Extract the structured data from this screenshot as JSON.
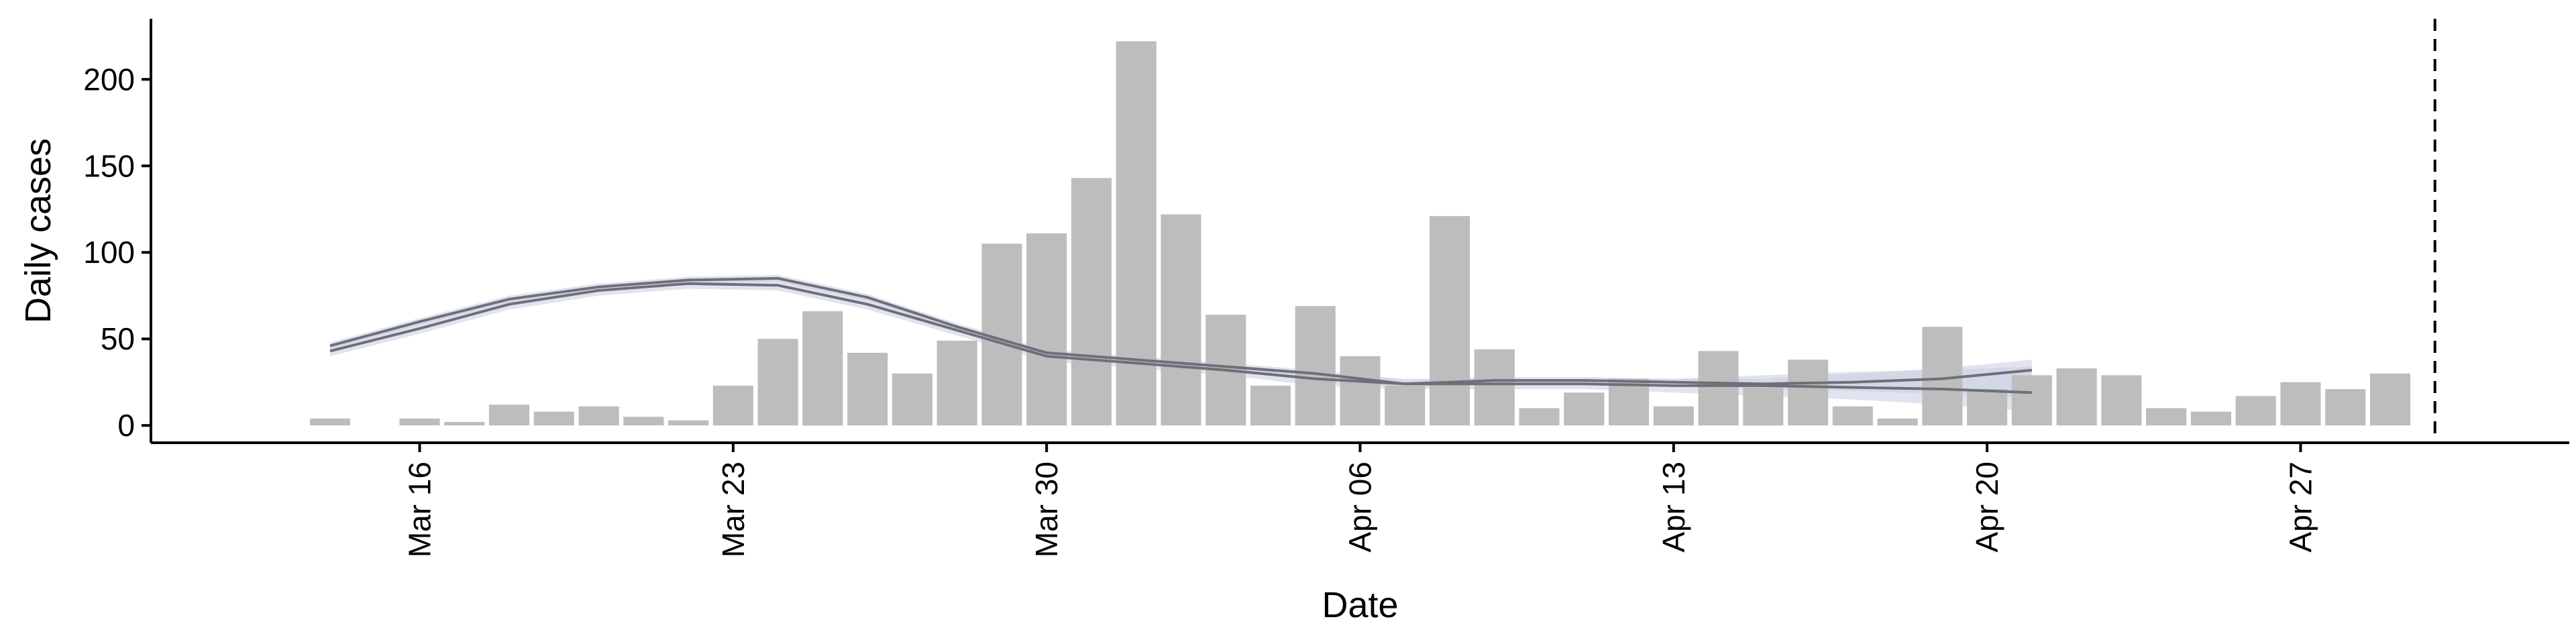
{
  "chart_data": {
    "type": "bar",
    "xlabel": "Date",
    "ylabel": "Daily cases",
    "x_range": [
      "2020-03-10",
      "2020-05-03"
    ],
    "ylim": [
      -10,
      235
    ],
    "grid": false,
    "legend": "none",
    "x_ticks": [
      {
        "date": "2020-03-16",
        "label": "Mar 16"
      },
      {
        "date": "2020-03-23",
        "label": "Mar 23"
      },
      {
        "date": "2020-03-30",
        "label": "Mar 30"
      },
      {
        "date": "2020-04-06",
        "label": "Apr 06"
      },
      {
        "date": "2020-04-13",
        "label": "Apr 13"
      },
      {
        "date": "2020-04-20",
        "label": "Apr 20"
      },
      {
        "date": "2020-04-27",
        "label": "Apr 27"
      }
    ],
    "y_ticks": [
      {
        "value": 0,
        "label": "0"
      },
      {
        "value": 50,
        "label": "50"
      },
      {
        "value": 100,
        "label": "100"
      },
      {
        "value": 150,
        "label": "150"
      },
      {
        "value": 200,
        "label": "200"
      }
    ],
    "bars": {
      "color": "#bdbdbd",
      "dates": [
        "2020-03-14",
        "2020-03-15",
        "2020-03-16",
        "2020-03-17",
        "2020-03-18",
        "2020-03-19",
        "2020-03-20",
        "2020-03-21",
        "2020-03-22",
        "2020-03-23",
        "2020-03-24",
        "2020-03-25",
        "2020-03-26",
        "2020-03-27",
        "2020-03-28",
        "2020-03-29",
        "2020-03-30",
        "2020-03-31",
        "2020-04-01",
        "2020-04-02",
        "2020-04-03",
        "2020-04-04",
        "2020-04-05",
        "2020-04-06",
        "2020-04-07",
        "2020-04-08",
        "2020-04-09",
        "2020-04-10",
        "2020-04-11",
        "2020-04-12",
        "2020-04-13",
        "2020-04-14",
        "2020-04-15",
        "2020-04-16",
        "2020-04-17",
        "2020-04-18",
        "2020-04-19",
        "2020-04-20",
        "2020-04-21",
        "2020-04-22",
        "2020-04-23",
        "2020-04-24",
        "2020-04-25",
        "2020-04-26",
        "2020-04-27",
        "2020-04-28",
        "2020-04-29",
        "2020-04-30",
        "2020-05-01"
      ],
      "values": [
        4,
        0,
        4,
        2,
        12,
        8,
        11,
        5,
        3,
        23,
        50,
        66,
        42,
        30,
        49,
        105,
        111,
        143,
        222,
        122,
        64,
        23,
        69,
        40,
        23,
        121,
        44,
        10,
        19,
        27,
        11,
        43,
        22,
        38,
        11,
        4,
        57,
        21,
        29,
        33,
        29,
        10,
        8,
        17,
        25,
        21,
        30,
        0,
        0
      ]
    },
    "trend_lines": {
      "color": "#6f6f7a",
      "band_color": "#c9cde0",
      "series": [
        {
          "dates": [
            "2020-03-14",
            "2020-03-16",
            "2020-03-18",
            "2020-03-20",
            "2020-03-22",
            "2020-03-24",
            "2020-03-26",
            "2020-03-28",
            "2020-03-30",
            "2020-04-01",
            "2020-04-03",
            "2020-04-05",
            "2020-04-07",
            "2020-04-09",
            "2020-04-11",
            "2020-04-13",
            "2020-04-15",
            "2020-04-17",
            "2020-04-19",
            "2020-04-21"
          ],
          "values": [
            43,
            56,
            70,
            78,
            82,
            81,
            70,
            55,
            40,
            36,
            32,
            27,
            24,
            24,
            24,
            23,
            23,
            22,
            21,
            19
          ],
          "band_low": [
            40,
            53,
            67,
            75,
            79,
            78,
            67,
            52,
            37,
            33,
            29,
            23,
            21,
            21,
            21,
            19,
            17,
            15,
            12,
            8
          ],
          "band_high": [
            46,
            59,
            73,
            81,
            85,
            84,
            73,
            58,
            43,
            39,
            35,
            31,
            27,
            27,
            27,
            27,
            29,
            31,
            32,
            34
          ]
        },
        {
          "dates": [
            "2020-03-14",
            "2020-03-16",
            "2020-03-18",
            "2020-03-20",
            "2020-03-22",
            "2020-03-24",
            "2020-03-26",
            "2020-03-28",
            "2020-03-30",
            "2020-04-01",
            "2020-04-03",
            "2020-04-05",
            "2020-04-07",
            "2020-04-09",
            "2020-04-11",
            "2020-04-13",
            "2020-04-15",
            "2020-04-17",
            "2020-04-19",
            "2020-04-21"
          ],
          "values": [
            46,
            60,
            73,
            80,
            84,
            85,
            74,
            57,
            42,
            38,
            34,
            30,
            24,
            26,
            26,
            25,
            24,
            25,
            27,
            32
          ],
          "band_low": [
            44,
            58,
            71,
            78,
            82,
            83,
            72,
            55,
            40,
            36,
            32,
            28,
            22,
            24,
            24,
            23,
            21,
            20,
            18,
            16
          ],
          "band_high": [
            48,
            62,
            75,
            82,
            86,
            87,
            76,
            59,
            44,
            40,
            36,
            32,
            26,
            28,
            28,
            27,
            27,
            30,
            33,
            38
          ]
        }
      ]
    },
    "reference_line": {
      "date": "2020-04-30",
      "style": "dashed",
      "color": "#000000"
    }
  }
}
